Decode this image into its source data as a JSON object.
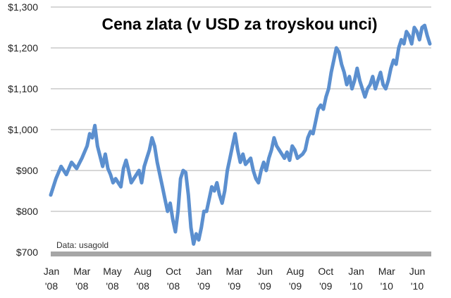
{
  "chart_data": {
    "type": "line",
    "title": "Cena zlata (v USD za troyskou unci)",
    "source_note": "Data: usagold",
    "xlabel": "",
    "ylabel": "",
    "ylim": [
      700,
      1300
    ],
    "yticks": [
      700,
      800,
      900,
      1000,
      1100,
      1200,
      1300
    ],
    "ytick_labels": [
      "$700",
      "$800",
      "$900",
      "$1,000",
      "$1,100",
      "$1,200",
      "$1,300"
    ],
    "xtick_labels": [
      [
        "Jan",
        "'08"
      ],
      [
        "Mar",
        "'08"
      ],
      [
        "May",
        "'08"
      ],
      [
        "Aug",
        "'08"
      ],
      [
        "Oct",
        "'08"
      ],
      [
        "Jan",
        "'09"
      ],
      [
        "Mar",
        "'09"
      ],
      [
        "Jun",
        "'09"
      ],
      [
        "Aug",
        "'09"
      ],
      [
        "Oct",
        "'09"
      ],
      [
        "Jan",
        "'10"
      ],
      [
        "Mar",
        "'10"
      ],
      [
        "Jun",
        "'10"
      ]
    ],
    "grid": true,
    "line_color": "#5b8fcf",
    "series": [
      {
        "name": "",
        "points": [
          [
            0,
            840
          ],
          [
            0.4,
            880
          ],
          [
            0.8,
            910
          ],
          [
            1.2,
            890
          ],
          [
            1.6,
            920
          ],
          [
            2.0,
            905
          ],
          [
            2.4,
            930
          ],
          [
            2.8,
            960
          ],
          [
            3.0,
            990
          ],
          [
            3.2,
            980
          ],
          [
            3.4,
            1010
          ],
          [
            3.6,
            960
          ],
          [
            3.8,
            935
          ],
          [
            4.0,
            910
          ],
          [
            4.2,
            940
          ],
          [
            4.4,
            905
          ],
          [
            4.6,
            890
          ],
          [
            4.8,
            870
          ],
          [
            5.0,
            880
          ],
          [
            5.4,
            860
          ],
          [
            5.6,
            905
          ],
          [
            5.8,
            925
          ],
          [
            6.0,
            900
          ],
          [
            6.2,
            870
          ],
          [
            6.4,
            880
          ],
          [
            6.8,
            900
          ],
          [
            7.0,
            870
          ],
          [
            7.2,
            910
          ],
          [
            7.4,
            930
          ],
          [
            7.6,
            950
          ],
          [
            7.8,
            980
          ],
          [
            8.0,
            960
          ],
          [
            8.2,
            920
          ],
          [
            8.4,
            890
          ],
          [
            8.6,
            860
          ],
          [
            8.8,
            830
          ],
          [
            9.0,
            800
          ],
          [
            9.2,
            820
          ],
          [
            9.4,
            780
          ],
          [
            9.6,
            750
          ],
          [
            9.8,
            800
          ],
          [
            10.0,
            880
          ],
          [
            10.2,
            900
          ],
          [
            10.4,
            895
          ],
          [
            10.6,
            840
          ],
          [
            10.8,
            760
          ],
          [
            11.0,
            720
          ],
          [
            11.2,
            745
          ],
          [
            11.4,
            730
          ],
          [
            11.6,
            760
          ],
          [
            11.8,
            800
          ],
          [
            12.0,
            800
          ],
          [
            12.2,
            830
          ],
          [
            12.4,
            860
          ],
          [
            12.6,
            850
          ],
          [
            12.8,
            870
          ],
          [
            13.0,
            840
          ],
          [
            13.2,
            820
          ],
          [
            13.4,
            850
          ],
          [
            13.6,
            900
          ],
          [
            13.8,
            930
          ],
          [
            14.0,
            960
          ],
          [
            14.2,
            990
          ],
          [
            14.4,
            950
          ],
          [
            14.6,
            920
          ],
          [
            14.8,
            940
          ],
          [
            15.0,
            915
          ],
          [
            15.4,
            930
          ],
          [
            15.6,
            900
          ],
          [
            15.8,
            880
          ],
          [
            16.0,
            870
          ],
          [
            16.2,
            900
          ],
          [
            16.4,
            920
          ],
          [
            16.6,
            900
          ],
          [
            16.8,
            930
          ],
          [
            17.0,
            950
          ],
          [
            17.2,
            980
          ],
          [
            17.4,
            960
          ],
          [
            17.6,
            950
          ],
          [
            17.8,
            940
          ],
          [
            18.0,
            930
          ],
          [
            18.2,
            945
          ],
          [
            18.4,
            925
          ],
          [
            18.6,
            960
          ],
          [
            18.8,
            950
          ],
          [
            19.0,
            930
          ],
          [
            19.4,
            940
          ],
          [
            19.6,
            950
          ],
          [
            19.8,
            980
          ],
          [
            20.0,
            995
          ],
          [
            20.2,
            990
          ],
          [
            20.4,
            1020
          ],
          [
            20.6,
            1050
          ],
          [
            20.8,
            1060
          ],
          [
            21.0,
            1050
          ],
          [
            21.2,
            1080
          ],
          [
            21.4,
            1100
          ],
          [
            21.6,
            1140
          ],
          [
            21.8,
            1170
          ],
          [
            22.0,
            1200
          ],
          [
            22.2,
            1190
          ],
          [
            22.4,
            1160
          ],
          [
            22.6,
            1140
          ],
          [
            22.8,
            1110
          ],
          [
            23.0,
            1130
          ],
          [
            23.2,
            1100
          ],
          [
            23.4,
            1120
          ],
          [
            23.6,
            1150
          ],
          [
            23.8,
            1120
          ],
          [
            24.0,
            1100
          ],
          [
            24.2,
            1080
          ],
          [
            24.4,
            1100
          ],
          [
            24.6,
            1110
          ],
          [
            24.8,
            1130
          ],
          [
            25.0,
            1100
          ],
          [
            25.2,
            1120
          ],
          [
            25.4,
            1140
          ],
          [
            25.6,
            1110
          ],
          [
            25.8,
            1100
          ],
          [
            26.0,
            1120
          ],
          [
            26.2,
            1150
          ],
          [
            26.4,
            1170
          ],
          [
            26.6,
            1160
          ],
          [
            26.8,
            1200
          ],
          [
            27.0,
            1220
          ],
          [
            27.2,
            1210
          ],
          [
            27.4,
            1240
          ],
          [
            27.6,
            1230
          ],
          [
            27.8,
            1210
          ],
          [
            28.0,
            1250
          ],
          [
            28.2,
            1240
          ],
          [
            28.4,
            1220
          ],
          [
            28.6,
            1250
          ],
          [
            28.8,
            1255
          ],
          [
            29.0,
            1230
          ],
          [
            29.2,
            1210
          ]
        ]
      }
    ]
  }
}
